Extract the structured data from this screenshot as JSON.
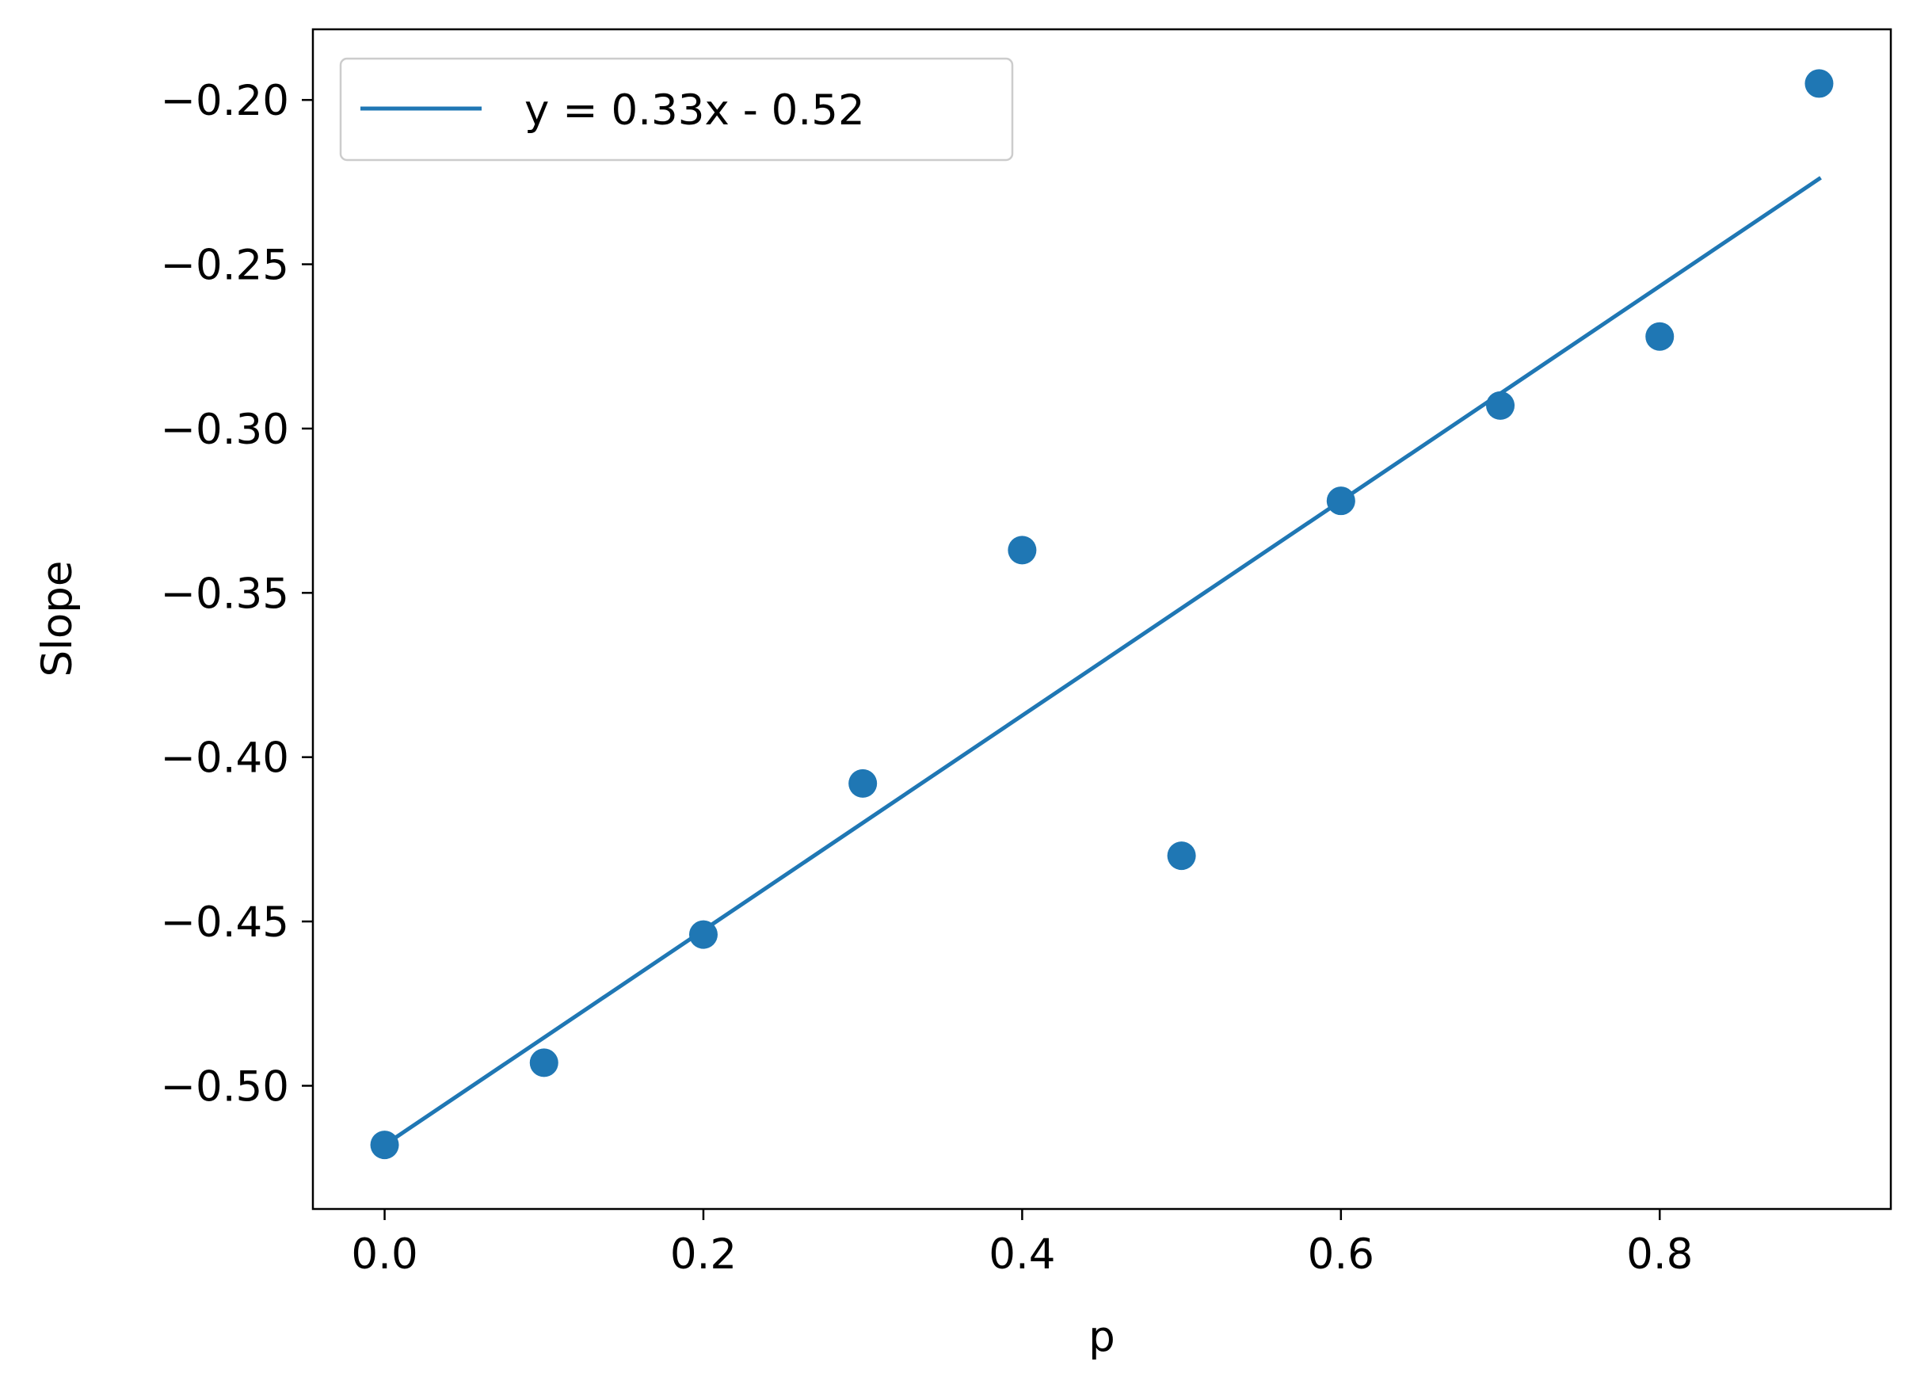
{
  "chart_data": {
    "type": "scatter",
    "xlabel": "p",
    "ylabel": "Slope",
    "xlim": [
      -0.045,
      0.945
    ],
    "ylim": [
      -0.5375,
      -0.1785
    ],
    "xticks": [
      0.0,
      0.2,
      0.4,
      0.6,
      0.8
    ],
    "xtick_labels": [
      "0.0",
      "0.2",
      "0.4",
      "0.6",
      "0.8"
    ],
    "yticks": [
      -0.5,
      -0.45,
      -0.4,
      -0.35,
      -0.3,
      -0.25,
      -0.2
    ],
    "ytick_labels": [
      "−0.50",
      "−0.45",
      "−0.40",
      "−0.35",
      "−0.30",
      "−0.25",
      "−0.20"
    ],
    "grid": false,
    "legend_position": "top-left",
    "color": "#1f77b4",
    "points": {
      "x": [
        0.0,
        0.1,
        0.2,
        0.3,
        0.4,
        0.5,
        0.6,
        0.7,
        0.8,
        0.9
      ],
      "y": [
        -0.518,
        -0.493,
        -0.454,
        -0.408,
        -0.337,
        -0.43,
        -0.322,
        -0.293,
        -0.272,
        -0.195
      ]
    },
    "fit_line": {
      "name": "y = 0.33x - 0.52",
      "x": [
        0.0,
        0.9
      ],
      "y": [
        -0.518,
        -0.224
      ]
    }
  }
}
